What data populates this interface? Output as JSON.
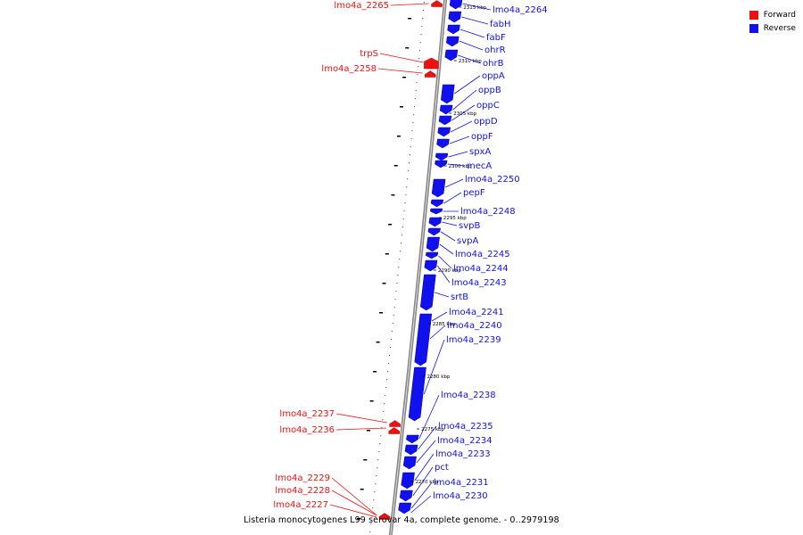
{
  "legend": {
    "forward_label": "Forward",
    "reverse_label": "Reverse",
    "forward_color": "#ee1111",
    "reverse_color": "#1111ee"
  },
  "caption": "Listeria monocytogenes L99 serovar 4a, complete genome. - 0..2979198",
  "genes_forward": [
    "lmo4a_2265",
    "trpS",
    "lmo4a_2258",
    "lmo4a_2237",
    "lmo4a_2236",
    "lmo4a_2229",
    "lmo4a_2228",
    "lmo4a_2227"
  ],
  "genes_reverse": [
    "lmo4a_2264",
    "fabH",
    "fabF",
    "ohrR",
    "ohrB",
    "oppA",
    "oppB",
    "oppC",
    "oppD",
    "oppF",
    "spxA",
    "mecA",
    "lmo4a_2250",
    "pepF",
    "lmo4a_2248",
    "svpB",
    "svpA",
    "lmo4a_2245",
    "lmo4a_2244",
    "lmo4a_2243",
    "srtB",
    "lmo4a_2241",
    "lmo4a_2240",
    "lmo4a_2239",
    "lmo4a_2238",
    "lmo4a_2235",
    "lmo4a_2234",
    "lmo4a_2233",
    "pct",
    "lmo4a_2231",
    "lmo4a_2230"
  ],
  "kbp_markers": [
    "2315 kbp",
    "2310 kbp",
    "2305 kbp",
    "2300 kbp",
    "2295 kbp",
    "2290 kbp",
    "2285 kbp",
    "2280 kbp",
    "2275 kbp",
    "2270 kbp"
  ]
}
